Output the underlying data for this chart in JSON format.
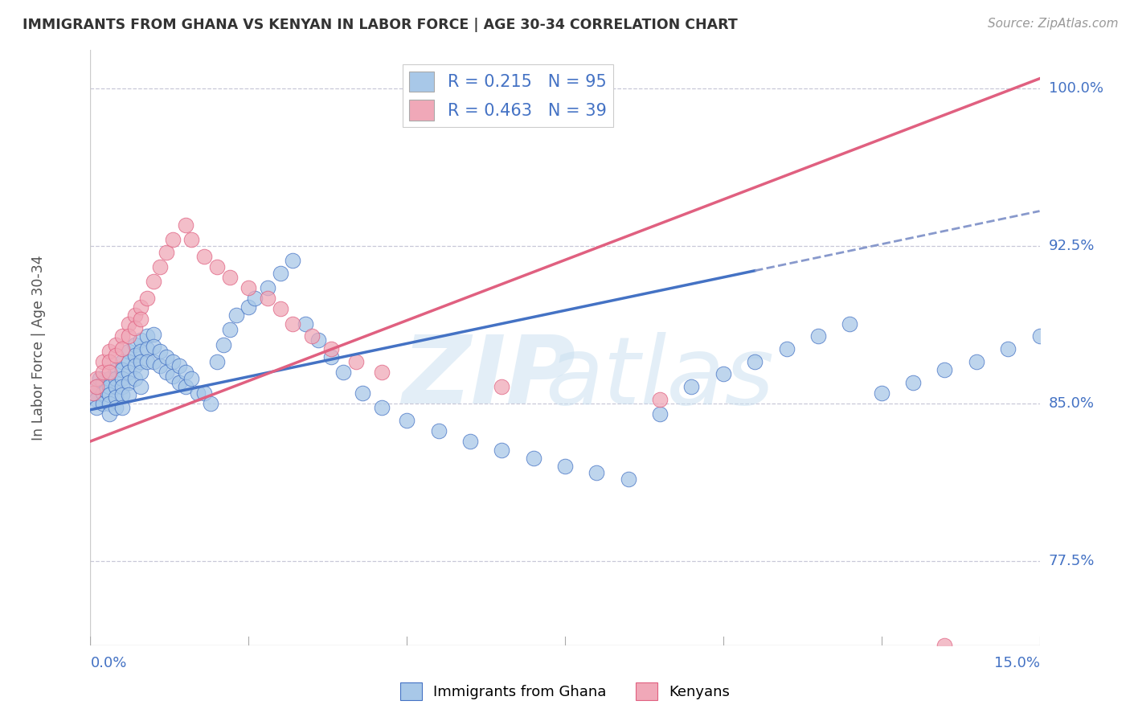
{
  "title": "IMMIGRANTS FROM GHANA VS KENYAN IN LABOR FORCE | AGE 30-34 CORRELATION CHART",
  "source": "Source: ZipAtlas.com",
  "ylabel": "In Labor Force | Age 30-34",
  "xlim": [
    0.0,
    0.15
  ],
  "ylim": [
    0.735,
    1.018
  ],
  "ghana_R": 0.215,
  "ghana_N": 95,
  "kenya_R": 0.463,
  "kenya_N": 39,
  "ghana_color": "#a8c8e8",
  "kenya_color": "#f0a8b8",
  "ghana_line_color": "#4472c4",
  "kenya_line_color": "#e06080",
  "yticks_vals": [
    0.775,
    0.85,
    0.925,
    1.0
  ],
  "yticks_labels": [
    "77.5%",
    "85.0%",
    "92.5%",
    "100.0%"
  ],
  "ghana_x": [
    0.0005,
    0.001,
    0.001,
    0.001,
    0.0015,
    0.002,
    0.002,
    0.002,
    0.0025,
    0.003,
    0.003,
    0.003,
    0.003,
    0.003,
    0.004,
    0.004,
    0.004,
    0.004,
    0.004,
    0.005,
    0.005,
    0.005,
    0.005,
    0.005,
    0.005,
    0.006,
    0.006,
    0.006,
    0.006,
    0.006,
    0.007,
    0.007,
    0.007,
    0.007,
    0.008,
    0.008,
    0.008,
    0.008,
    0.008,
    0.009,
    0.009,
    0.009,
    0.01,
    0.01,
    0.01,
    0.011,
    0.011,
    0.012,
    0.012,
    0.013,
    0.013,
    0.014,
    0.014,
    0.015,
    0.015,
    0.016,
    0.017,
    0.018,
    0.019,
    0.02,
    0.021,
    0.022,
    0.023,
    0.025,
    0.026,
    0.028,
    0.03,
    0.032,
    0.034,
    0.036,
    0.038,
    0.04,
    0.043,
    0.046,
    0.05,
    0.055,
    0.06,
    0.065,
    0.07,
    0.075,
    0.08,
    0.085,
    0.09,
    0.095,
    0.1,
    0.105,
    0.11,
    0.115,
    0.12,
    0.125,
    0.13,
    0.135,
    0.14,
    0.145,
    0.15
  ],
  "ghana_y": [
    0.855,
    0.858,
    0.852,
    0.848,
    0.862,
    0.86,
    0.855,
    0.85,
    0.856,
    0.862,
    0.858,
    0.854,
    0.85,
    0.845,
    0.866,
    0.862,
    0.858,
    0.853,
    0.848,
    0.87,
    0.866,
    0.862,
    0.858,
    0.854,
    0.848,
    0.875,
    0.87,
    0.865,
    0.86,
    0.854,
    0.878,
    0.873,
    0.868,
    0.862,
    0.88,
    0.875,
    0.87,
    0.865,
    0.858,
    0.882,
    0.876,
    0.87,
    0.883,
    0.877,
    0.87,
    0.875,
    0.868,
    0.872,
    0.865,
    0.87,
    0.863,
    0.868,
    0.86,
    0.865,
    0.858,
    0.862,
    0.855,
    0.855,
    0.85,
    0.87,
    0.878,
    0.885,
    0.892,
    0.896,
    0.9,
    0.905,
    0.912,
    0.918,
    0.888,
    0.88,
    0.872,
    0.865,
    0.855,
    0.848,
    0.842,
    0.837,
    0.832,
    0.828,
    0.824,
    0.82,
    0.817,
    0.814,
    0.845,
    0.858,
    0.864,
    0.87,
    0.876,
    0.882,
    0.888,
    0.855,
    0.86,
    0.866,
    0.87,
    0.876,
    0.882
  ],
  "kenya_x": [
    0.0005,
    0.001,
    0.001,
    0.002,
    0.002,
    0.003,
    0.003,
    0.003,
    0.004,
    0.004,
    0.005,
    0.005,
    0.006,
    0.006,
    0.007,
    0.007,
    0.008,
    0.008,
    0.009,
    0.01,
    0.011,
    0.012,
    0.013,
    0.015,
    0.016,
    0.018,
    0.02,
    0.022,
    0.025,
    0.028,
    0.03,
    0.032,
    0.035,
    0.038,
    0.042,
    0.046,
    0.065,
    0.09,
    0.135
  ],
  "kenya_y": [
    0.855,
    0.862,
    0.858,
    0.87,
    0.865,
    0.875,
    0.87,
    0.865,
    0.878,
    0.873,
    0.882,
    0.876,
    0.888,
    0.882,
    0.892,
    0.886,
    0.896,
    0.89,
    0.9,
    0.908,
    0.915,
    0.922,
    0.928,
    0.935,
    0.928,
    0.92,
    0.915,
    0.91,
    0.905,
    0.9,
    0.895,
    0.888,
    0.882,
    0.876,
    0.87,
    0.865,
    0.858,
    0.852,
    0.735
  ]
}
